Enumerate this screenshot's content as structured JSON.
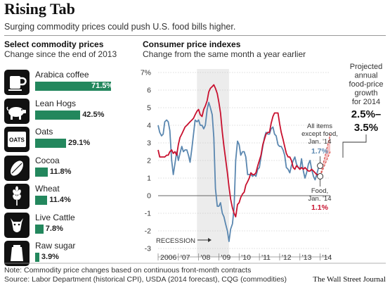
{
  "header": {
    "title": "Rising Tab",
    "subtitle": "Surging commodity prices could push U.S. food bills higher."
  },
  "left_panel": {
    "heading": "Select commodity prices",
    "subheading": "Change since the end of 2013",
    "items": [
      {
        "label": "Arabica coffee",
        "value": 71.5,
        "display": "71.5%",
        "icon": "coffee-mug-icon"
      },
      {
        "label": "Lean Hogs",
        "value": 42.5,
        "display": "42.5%",
        "icon": "pig-icon"
      },
      {
        "label": "Oats",
        "value": 29.1,
        "display": "29.1%",
        "icon": "oats-box-icon",
        "icon_text": "OATS"
      },
      {
        "label": "Cocoa",
        "value": 11.8,
        "display": "11.8%",
        "icon": "cocoa-pod-icon"
      },
      {
        "label": "Wheat",
        "value": 11.4,
        "display": "11.4%",
        "icon": "wheat-icon"
      },
      {
        "label": "Live Cattle",
        "value": 7.8,
        "display": "7.8%",
        "icon": "cattle-icon"
      },
      {
        "label": "Raw sugar",
        "value": 3.9,
        "display": "3.9%",
        "icon": "sugar-bag-icon"
      }
    ],
    "bar_color": "#23875d"
  },
  "right_panel": {
    "heading": "Consumer price indexes",
    "subheading": "Change from the same month a year earlier"
  },
  "annotations": {
    "recession": "RECESSION",
    "all_items_label": "All items except food, Jan. '14",
    "all_items_value": "1.7%",
    "food_label": "Food, Jan. '14",
    "food_value": "1.1%",
    "projection_label": "Projected annual food-price growth for 2014",
    "projection_value": "2.5%–3.5%"
  },
  "chart_data": {
    "type": "line",
    "title": "Consumer price indexes",
    "subtitle": "Change from the same month a year earlier",
    "x_tick_labels": [
      "2006",
      "'07",
      "'08",
      "'09",
      "'10",
      "'11",
      "'12",
      "'13",
      "'14"
    ],
    "y_tick_labels": [
      "7%",
      "6",
      "5",
      "4",
      "3",
      "2",
      "1",
      "0",
      "-1",
      "-2",
      "-3"
    ],
    "ylim": [
      -3,
      7
    ],
    "xlim": [
      2006.0,
      2014.5
    ],
    "grid": true,
    "recession_band": [
      2007.92,
      2009.5
    ],
    "series": [
      {
        "name": "All items except food",
        "color": "#5a87b0",
        "points": [
          [
            2006.0,
            4.0
          ],
          [
            2006.08,
            3.6
          ],
          [
            2006.17,
            3.4
          ],
          [
            2006.25,
            3.5
          ],
          [
            2006.33,
            4.2
          ],
          [
            2006.42,
            4.3
          ],
          [
            2006.5,
            4.2
          ],
          [
            2006.58,
            3.7
          ],
          [
            2006.67,
            2.0
          ],
          [
            2006.75,
            1.2
          ],
          [
            2006.83,
            1.8
          ],
          [
            2006.92,
            2.5
          ],
          [
            2007.0,
            2.0
          ],
          [
            2007.08,
            2.4
          ],
          [
            2007.17,
            2.8
          ],
          [
            2007.25,
            2.5
          ],
          [
            2007.33,
            2.6
          ],
          [
            2007.42,
            2.6
          ],
          [
            2007.5,
            2.3
          ],
          [
            2007.58,
            1.9
          ],
          [
            2007.67,
            2.7
          ],
          [
            2007.75,
            3.5
          ],
          [
            2007.83,
            4.3
          ],
          [
            2007.92,
            4.2
          ],
          [
            2008.0,
            4.3
          ],
          [
            2008.08,
            4.0
          ],
          [
            2008.17,
            4.0
          ],
          [
            2008.25,
            3.8
          ],
          [
            2008.33,
            4.0
          ],
          [
            2008.42,
            4.9
          ],
          [
            2008.5,
            5.3
          ],
          [
            2008.58,
            5.0
          ],
          [
            2008.67,
            4.6
          ],
          [
            2008.75,
            3.3
          ],
          [
            2008.83,
            0.4
          ],
          [
            2008.92,
            -0.6
          ],
          [
            2009.0,
            -0.6
          ],
          [
            2009.08,
            -0.4
          ],
          [
            2009.17,
            -1.0
          ],
          [
            2009.25,
            -1.2
          ],
          [
            2009.33,
            -1.6
          ],
          [
            2009.42,
            -2.0
          ],
          [
            2009.5,
            -2.6
          ],
          [
            2009.58,
            -1.9
          ],
          [
            2009.67,
            -1.6
          ],
          [
            2009.75,
            -0.7
          ],
          [
            2009.83,
            2.0
          ],
          [
            2009.92,
            3.1
          ],
          [
            2010.0,
            2.9
          ],
          [
            2010.08,
            2.3
          ],
          [
            2010.17,
            2.5
          ],
          [
            2010.25,
            2.5
          ],
          [
            2010.33,
            2.2
          ],
          [
            2010.42,
            1.2
          ],
          [
            2010.5,
            1.2
          ],
          [
            2010.58,
            1.2
          ],
          [
            2010.67,
            1.1
          ],
          [
            2010.75,
            1.2
          ],
          [
            2010.83,
            1.1
          ],
          [
            2010.92,
            1.5
          ],
          [
            2011.0,
            1.6
          ],
          [
            2011.08,
            2.2
          ],
          [
            2011.17,
            2.8
          ],
          [
            2011.25,
            3.3
          ],
          [
            2011.33,
            3.6
          ],
          [
            2011.42,
            3.5
          ],
          [
            2011.5,
            3.5
          ],
          [
            2011.58,
            3.8
          ],
          [
            2011.67,
            3.9
          ],
          [
            2011.75,
            3.5
          ],
          [
            2011.83,
            3.4
          ],
          [
            2011.92,
            2.9
          ],
          [
            2012.0,
            2.8
          ],
          [
            2012.08,
            2.8
          ],
          [
            2012.17,
            2.6
          ],
          [
            2012.25,
            2.3
          ],
          [
            2012.33,
            1.6
          ],
          [
            2012.42,
            1.5
          ],
          [
            2012.5,
            1.3
          ],
          [
            2012.58,
            1.7
          ],
          [
            2012.67,
            2.0
          ],
          [
            2012.75,
            2.2
          ],
          [
            2012.83,
            1.8
          ],
          [
            2012.92,
            1.6
          ],
          [
            2013.0,
            1.5
          ],
          [
            2013.08,
            2.1
          ],
          [
            2013.17,
            1.4
          ],
          [
            2013.25,
            1.0
          ],
          [
            2013.33,
            1.3
          ],
          [
            2013.42,
            1.8
          ],
          [
            2013.5,
            2.0
          ],
          [
            2013.58,
            1.5
          ],
          [
            2013.67,
            1.1
          ],
          [
            2013.75,
            0.9
          ],
          [
            2013.83,
            1.2
          ],
          [
            2013.92,
            1.6
          ],
          [
            2014.0,
            1.7
          ]
        ]
      },
      {
        "name": "Food",
        "color": "#c8102e",
        "points": [
          [
            2006.0,
            2.6
          ],
          [
            2006.08,
            2.2
          ],
          [
            2006.17,
            2.2
          ],
          [
            2006.25,
            2.2
          ],
          [
            2006.33,
            2.2
          ],
          [
            2006.42,
            2.3
          ],
          [
            2006.5,
            2.3
          ],
          [
            2006.58,
            2.5
          ],
          [
            2006.67,
            2.6
          ],
          [
            2006.75,
            2.4
          ],
          [
            2006.83,
            2.5
          ],
          [
            2006.92,
            2.3
          ],
          [
            2007.0,
            2.9
          ],
          [
            2007.08,
            3.3
          ],
          [
            2007.17,
            3.5
          ],
          [
            2007.25,
            3.7
          ],
          [
            2007.33,
            3.9
          ],
          [
            2007.42,
            4.0
          ],
          [
            2007.5,
            4.1
          ],
          [
            2007.58,
            4.2
          ],
          [
            2007.67,
            4.3
          ],
          [
            2007.75,
            4.4
          ],
          [
            2007.83,
            4.6
          ],
          [
            2007.92,
            4.8
          ],
          [
            2008.0,
            4.9
          ],
          [
            2008.08,
            4.6
          ],
          [
            2008.17,
            4.5
          ],
          [
            2008.25,
            4.9
          ],
          [
            2008.33,
            5.1
          ],
          [
            2008.42,
            5.4
          ],
          [
            2008.5,
            5.9
          ],
          [
            2008.58,
            6.1
          ],
          [
            2008.67,
            6.2
          ],
          [
            2008.75,
            6.3
          ],
          [
            2008.83,
            6.1
          ],
          [
            2008.92,
            5.8
          ],
          [
            2009.0,
            5.3
          ],
          [
            2009.08,
            4.7
          ],
          [
            2009.17,
            3.6
          ],
          [
            2009.25,
            2.8
          ],
          [
            2009.33,
            2.1
          ],
          [
            2009.42,
            1.3
          ],
          [
            2009.5,
            0.5
          ],
          [
            2009.58,
            -0.2
          ],
          [
            2009.67,
            -0.7
          ],
          [
            2009.75,
            -1.0
          ],
          [
            2009.83,
            -1.2
          ],
          [
            2009.92,
            -0.5
          ],
          [
            2010.0,
            -0.4
          ],
          [
            2010.08,
            -0.1
          ],
          [
            2010.17,
            0.1
          ],
          [
            2010.25,
            0.2
          ],
          [
            2010.33,
            0.6
          ],
          [
            2010.42,
            0.8
          ],
          [
            2010.5,
            1.0
          ],
          [
            2010.58,
            1.3
          ],
          [
            2010.67,
            1.2
          ],
          [
            2010.75,
            1.2
          ],
          [
            2010.83,
            1.3
          ],
          [
            2010.92,
            1.7
          ],
          [
            2011.0,
            2.0
          ],
          [
            2011.08,
            2.3
          ],
          [
            2011.17,
            2.9
          ],
          [
            2011.25,
            3.2
          ],
          [
            2011.33,
            3.5
          ],
          [
            2011.42,
            3.6
          ],
          [
            2011.5,
            3.6
          ],
          [
            2011.58,
            4.1
          ],
          [
            2011.67,
            4.5
          ],
          [
            2011.75,
            4.7
          ],
          [
            2011.83,
            4.7
          ],
          [
            2011.92,
            4.7
          ],
          [
            2012.0,
            4.1
          ],
          [
            2012.08,
            3.6
          ],
          [
            2012.17,
            3.2
          ],
          [
            2012.25,
            2.8
          ],
          [
            2012.33,
            2.4
          ],
          [
            2012.42,
            2.2
          ],
          [
            2012.5,
            2.2
          ],
          [
            2012.58,
            2.0
          ],
          [
            2012.67,
            1.6
          ],
          [
            2012.75,
            1.5
          ],
          [
            2012.83,
            1.7
          ],
          [
            2012.92,
            1.6
          ],
          [
            2013.0,
            1.5
          ],
          [
            2013.08,
            1.6
          ],
          [
            2013.17,
            1.5
          ],
          [
            2013.25,
            1.6
          ],
          [
            2013.33,
            1.5
          ],
          [
            2013.42,
            1.4
          ],
          [
            2013.5,
            1.4
          ],
          [
            2013.58,
            1.5
          ],
          [
            2013.67,
            1.4
          ],
          [
            2013.75,
            1.3
          ],
          [
            2013.83,
            1.2
          ],
          [
            2013.92,
            1.2
          ],
          [
            2014.0,
            1.1
          ]
        ]
      }
    ],
    "projection": {
      "from": 2014.0,
      "to": 2014.5,
      "start": 1.1,
      "low": 2.5,
      "high": 3.5,
      "color": "#d9534f"
    }
  },
  "footer": {
    "note": "Note: Commodity price changes based on continuous front-month contracts",
    "sources": "Source: Labor Department (historical CPI), USDA (2014 forecast), CQG (commodities)",
    "credit": "The Wall Street Journal"
  }
}
